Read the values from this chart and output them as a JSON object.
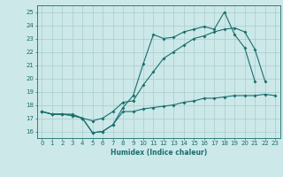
{
  "xlabel": "Humidex (Indice chaleur)",
  "bg_color": "#cce8e8",
  "grid_color": "#aacccc",
  "line_color": "#1a6e6e",
  "xlim": [
    -0.5,
    23.5
  ],
  "ylim": [
    15.5,
    25.5
  ],
  "xticks": [
    0,
    1,
    2,
    3,
    4,
    5,
    6,
    7,
    8,
    9,
    10,
    11,
    12,
    13,
    14,
    15,
    16,
    17,
    18,
    19,
    20,
    21,
    22,
    23
  ],
  "yticks": [
    16,
    17,
    18,
    19,
    20,
    21,
    22,
    23,
    24,
    25
  ],
  "line_max": [
    17.5,
    17.3,
    17.3,
    17.3,
    17.0,
    15.9,
    16.0,
    16.5,
    17.8,
    18.7,
    21.1,
    23.3,
    23.0,
    23.1,
    23.5,
    23.7,
    23.9,
    23.7,
    25.0,
    23.3,
    22.3,
    19.8,
    null,
    null
  ],
  "line_mean": [
    17.5,
    17.3,
    17.3,
    17.2,
    17.0,
    16.8,
    17.0,
    17.5,
    18.2,
    18.3,
    19.5,
    20.5,
    21.5,
    22.0,
    22.5,
    23.0,
    23.2,
    23.5,
    23.7,
    23.8,
    23.5,
    22.2,
    19.8,
    null
  ],
  "line_min": [
    17.5,
    17.3,
    17.3,
    17.2,
    17.0,
    15.9,
    16.0,
    16.5,
    17.5,
    17.5,
    17.7,
    17.8,
    17.9,
    18.0,
    18.2,
    18.3,
    18.5,
    18.5,
    18.6,
    18.7,
    18.7,
    18.7,
    18.8,
    18.7
  ]
}
